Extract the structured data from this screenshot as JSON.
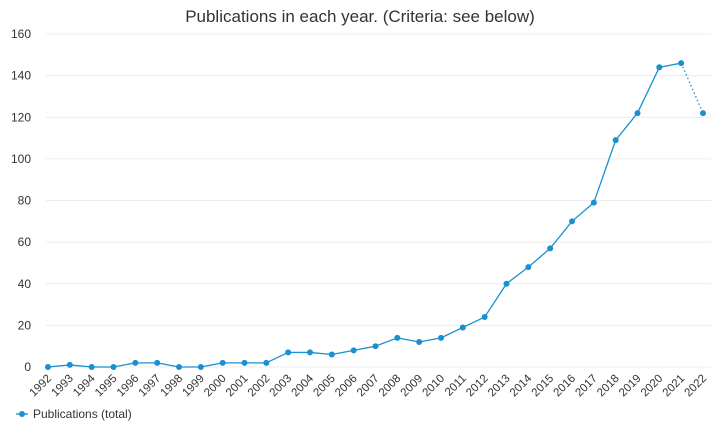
{
  "title": "Publications in each year. (Criteria: see below)",
  "chart_data": {
    "type": "line",
    "title": "Publications in each year. (Criteria: see below)",
    "xlabel": "",
    "ylabel": "",
    "ylim": [
      0,
      160
    ],
    "yticks": [
      0,
      20,
      40,
      60,
      80,
      100,
      120,
      140,
      160
    ],
    "grid": true,
    "legend_position": "bottom-left",
    "categories": [
      "1992",
      "1993",
      "1994",
      "1995",
      "1996",
      "1997",
      "1998",
      "1999",
      "2000",
      "2001",
      "2002",
      "2003",
      "2004",
      "2005",
      "2006",
      "2007",
      "2008",
      "2009",
      "2010",
      "2011",
      "2012",
      "2013",
      "2014",
      "2015",
      "2016",
      "2017",
      "2018",
      "2019",
      "2020",
      "2021",
      "2022"
    ],
    "series": [
      {
        "name": "Publications (total)",
        "color": "#1a8fd1",
        "values": [
          0,
          1,
          0,
          0,
          2,
          2,
          0,
          0,
          2,
          2,
          2,
          7,
          7,
          6,
          8,
          10,
          14,
          12,
          14,
          19,
          24,
          40,
          48,
          57,
          70,
          79,
          109,
          122,
          144,
          146,
          122
        ],
        "last_segment_style": "dotted"
      }
    ]
  }
}
